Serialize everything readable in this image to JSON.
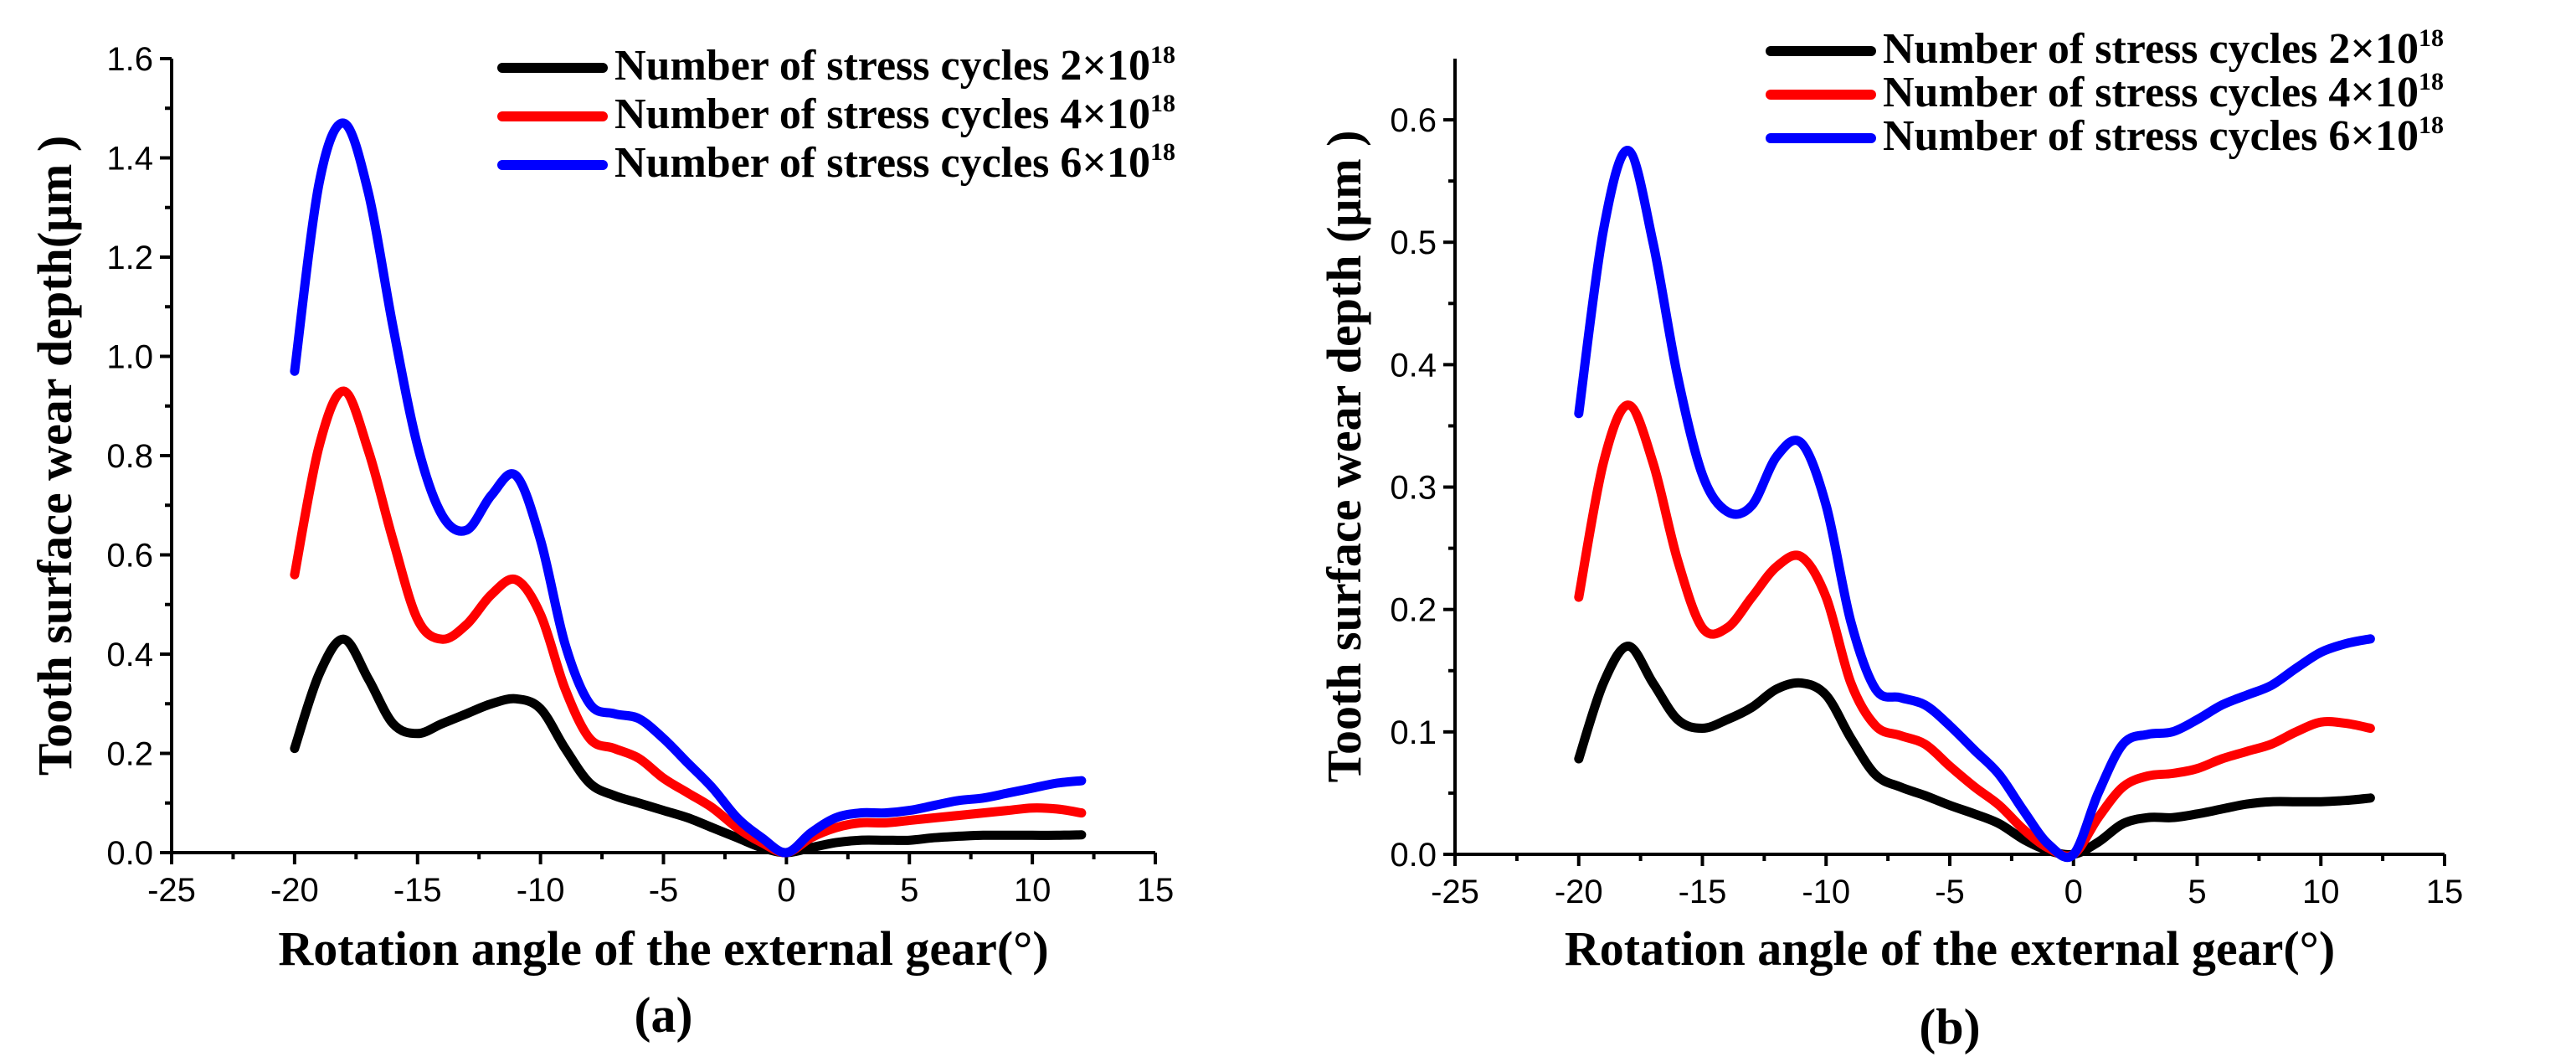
{
  "chart_data": [
    {
      "type": "line",
      "panel_label": "(a)",
      "xlabel": "Rotation angle of the external gear(°)",
      "ylabel": "Tooth surface wear depth(μm )",
      "xlim": [
        -25,
        15
      ],
      "ylim": [
        0,
        1.6
      ],
      "xticks": [
        "-25",
        "-20",
        "-15",
        "-10",
        "-5",
        "0",
        "5",
        "10",
        "15"
      ],
      "yticks": [
        "0.0",
        "0.2",
        "0.4",
        "0.6",
        "0.8",
        "1.0",
        "1.2",
        "1.4",
        "1.6"
      ],
      "legend_position": "top-right",
      "series": [
        {
          "name_text": "Number of stress cycles 2×10",
          "name_sup": "18",
          "color": "#000000",
          "x": [
            -20,
            -19,
            -18,
            -17,
            -16,
            -15,
            -14,
            -13,
            -12,
            -11,
            -10,
            -9,
            -8,
            -7,
            -6,
            -5,
            -4,
            -3,
            -2,
            -1,
            0,
            1,
            2,
            3,
            4,
            5,
            6,
            7,
            8,
            9,
            10,
            11,
            12
          ],
          "y": [
            0.21,
            0.36,
            0.43,
            0.35,
            0.26,
            0.24,
            0.26,
            0.28,
            0.3,
            0.31,
            0.29,
            0.21,
            0.14,
            0.115,
            0.1,
            0.085,
            0.07,
            0.05,
            0.03,
            0.01,
            0.0,
            0.01,
            0.02,
            0.025,
            0.025,
            0.025,
            0.03,
            0.033,
            0.035,
            0.035,
            0.035,
            0.035,
            0.036
          ]
        },
        {
          "name_text": "Number of stress cycles 4×10",
          "name_sup": "18",
          "color": "#ff0000",
          "x": [
            -20,
            -19,
            -18,
            -17,
            -16,
            -15,
            -14,
            -13,
            -12,
            -11,
            -10,
            -9,
            -8,
            -7,
            -6,
            -5,
            -4,
            -3,
            -2,
            -1,
            0,
            1,
            2,
            3,
            4,
            5,
            6,
            7,
            8,
            9,
            10,
            11,
            12
          ],
          "y": [
            0.56,
            0.82,
            0.93,
            0.81,
            0.63,
            0.47,
            0.43,
            0.46,
            0.52,
            0.55,
            0.48,
            0.33,
            0.23,
            0.21,
            0.19,
            0.15,
            0.12,
            0.09,
            0.05,
            0.02,
            0.0,
            0.03,
            0.05,
            0.06,
            0.06,
            0.065,
            0.07,
            0.075,
            0.08,
            0.085,
            0.09,
            0.088,
            0.08
          ]
        },
        {
          "name_text": "Number of stress cycles 6×10",
          "name_sup": "18",
          "color": "#0000ff",
          "x": [
            -20,
            -19,
            -18,
            -17,
            -16,
            -15,
            -14,
            -13,
            -12,
            -11,
            -10,
            -9,
            -8,
            -7,
            -6,
            -5,
            -4,
            -3,
            -2,
            -1,
            0,
            1,
            2,
            3,
            4,
            5,
            6,
            7,
            8,
            9,
            10,
            11,
            12
          ],
          "y": [
            0.97,
            1.35,
            1.47,
            1.33,
            1.06,
            0.82,
            0.68,
            0.65,
            0.72,
            0.76,
            0.63,
            0.42,
            0.3,
            0.28,
            0.27,
            0.23,
            0.18,
            0.13,
            0.07,
            0.03,
            0.0,
            0.04,
            0.07,
            0.08,
            0.08,
            0.085,
            0.095,
            0.105,
            0.11,
            0.12,
            0.13,
            0.14,
            0.145
          ]
        }
      ]
    },
    {
      "type": "line",
      "panel_label": "(b)",
      "xlabel": "Rotation angle of the external gear(°)",
      "ylabel": "Tooth surface wear depth (μm )",
      "xlim": [
        -25,
        15
      ],
      "ylim": [
        0,
        0.65
      ],
      "xticks": [
        "-25",
        "-20",
        "-15",
        "-10",
        "-5",
        "0",
        "5",
        "10",
        "15"
      ],
      "yticks": [
        "0.0",
        "0.1",
        "0.2",
        "0.3",
        "0.4",
        "0.5",
        "0.6"
      ],
      "legend_position": "top-right",
      "series": [
        {
          "name_text": "Number of stress cycles 2×10",
          "name_sup": "18",
          "color": "#000000",
          "x": [
            -20,
            -19,
            -18,
            -17,
            -16,
            -15,
            -14,
            -13,
            -12,
            -11,
            -10,
            -9,
            -8,
            -7,
            -6,
            -5,
            -4,
            -3,
            -2,
            -1,
            0,
            1,
            2,
            3,
            4,
            5,
            6,
            7,
            8,
            9,
            10,
            11,
            12
          ],
          "y": [
            0.078,
            0.14,
            0.17,
            0.14,
            0.11,
            0.103,
            0.11,
            0.12,
            0.135,
            0.14,
            0.13,
            0.095,
            0.065,
            0.055,
            0.048,
            0.04,
            0.033,
            0.025,
            0.012,
            0.003,
            0.0,
            0.01,
            0.025,
            0.03,
            0.03,
            0.033,
            0.037,
            0.041,
            0.043,
            0.043,
            0.043,
            0.044,
            0.046
          ]
        },
        {
          "name_text": "Number of stress cycles 4×10",
          "name_sup": "18",
          "color": "#ff0000",
          "x": [
            -20,
            -19,
            -18,
            -17,
            -16,
            -15,
            -14,
            -13,
            -12,
            -11,
            -10,
            -9,
            -8,
            -7,
            -6,
            -5,
            -4,
            -3,
            -2,
            -1,
            0,
            1,
            2,
            3,
            4,
            5,
            6,
            7,
            8,
            9,
            10,
            11,
            12
          ],
          "y": [
            0.21,
            0.32,
            0.367,
            0.32,
            0.24,
            0.185,
            0.185,
            0.21,
            0.235,
            0.243,
            0.21,
            0.14,
            0.105,
            0.097,
            0.09,
            0.072,
            0.055,
            0.04,
            0.02,
            0.005,
            0.0,
            0.03,
            0.055,
            0.064,
            0.066,
            0.07,
            0.078,
            0.084,
            0.09,
            0.1,
            0.108,
            0.107,
            0.103
          ]
        },
        {
          "name_text": "Number of stress cycles 6×10",
          "name_sup": "18",
          "color": "#0000ff",
          "x": [
            -20,
            -19,
            -18,
            -17,
            -16,
            -15,
            -14,
            -13,
            -12,
            -11,
            -10,
            -9,
            -8,
            -7,
            -6,
            -5,
            -4,
            -3,
            -2,
            -1,
            0,
            1,
            2,
            3,
            4,
            5,
            6,
            7,
            8,
            9,
            10,
            11,
            12
          ],
          "y": [
            0.36,
            0.51,
            0.575,
            0.5,
            0.39,
            0.31,
            0.28,
            0.285,
            0.325,
            0.336,
            0.285,
            0.19,
            0.135,
            0.128,
            0.122,
            0.105,
            0.085,
            0.065,
            0.035,
            0.008,
            0.0,
            0.05,
            0.09,
            0.098,
            0.1,
            0.11,
            0.122,
            0.13,
            0.138,
            0.152,
            0.165,
            0.172,
            0.176
          ]
        }
      ]
    }
  ]
}
